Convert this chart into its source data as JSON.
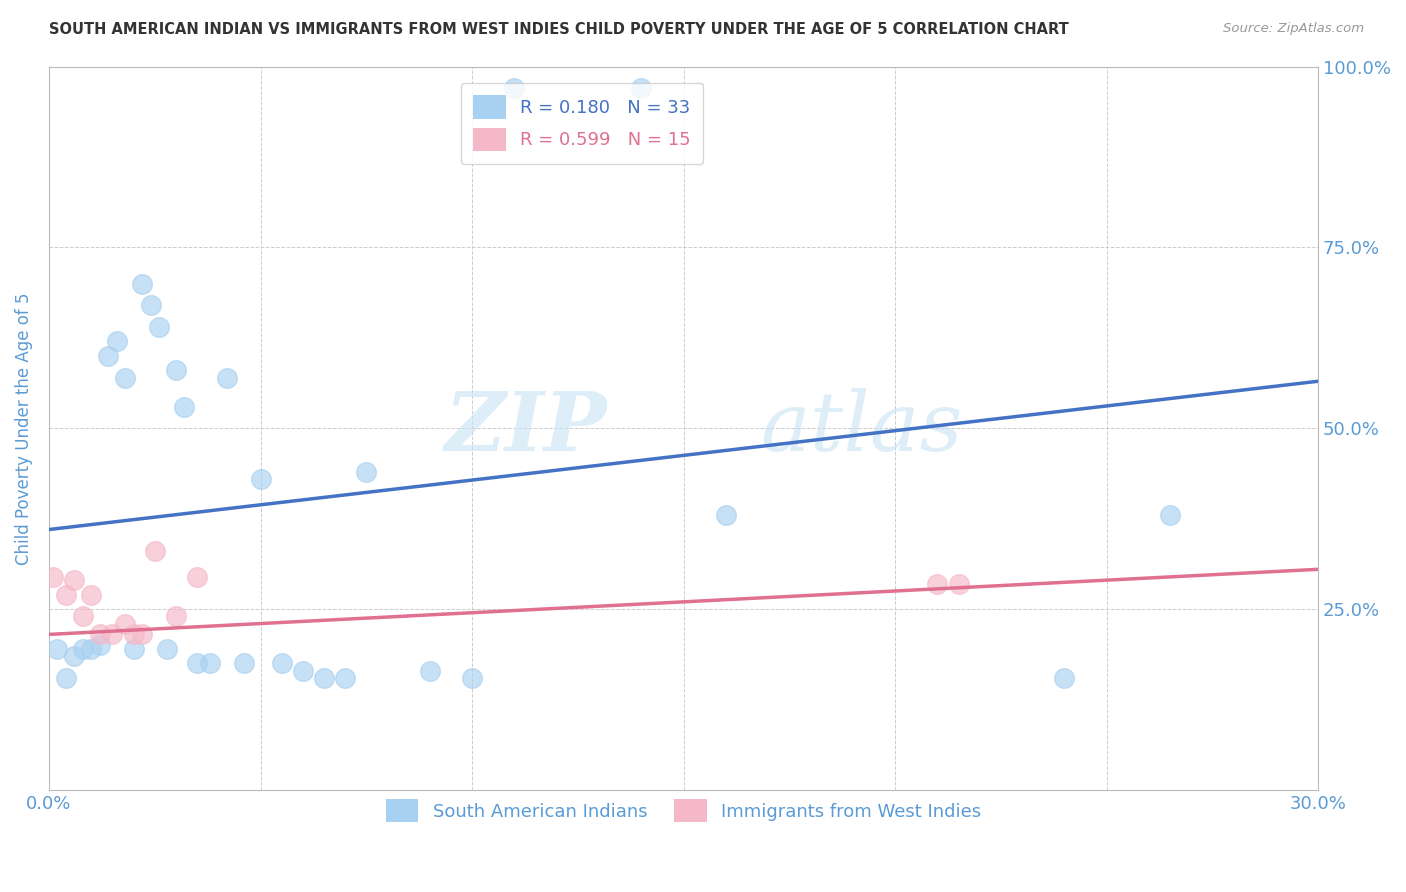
{
  "title": "SOUTH AMERICAN INDIAN VS IMMIGRANTS FROM WEST INDIES CHILD POVERTY UNDER THE AGE OF 5 CORRELATION CHART",
  "source": "Source: ZipAtlas.com",
  "ylabel": "Child Poverty Under the Age of 5",
  "x_min": 0.0,
  "x_max": 0.3,
  "y_min": 0.0,
  "y_max": 1.0,
  "x_ticks": [
    0.0,
    0.05,
    0.1,
    0.15,
    0.2,
    0.25,
    0.3
  ],
  "x_tick_labels": [
    "0.0%",
    "",
    "",
    "",
    "",
    "",
    "30.0%"
  ],
  "y_ticks": [
    0.0,
    0.25,
    0.5,
    0.75,
    1.0
  ],
  "y_tick_labels_right": [
    "",
    "25.0%",
    "50.0%",
    "75.0%",
    "100.0%"
  ],
  "blue_color": "#A8D0F0",
  "pink_color": "#F5B8C8",
  "blue_line_color": "#4472C4",
  "pink_line_color": "#E07090",
  "r_blue": 0.18,
  "n_blue": 33,
  "r_pink": 0.599,
  "n_pink": 15,
  "legend_label_blue": "South American Indians",
  "legend_label_pink": "Immigrants from West Indies",
  "watermark_zip": "ZIP",
  "watermark_atlas": "atlas",
  "blue_scatter_x": [
    0.002,
    0.004,
    0.006,
    0.008,
    0.01,
    0.012,
    0.014,
    0.016,
    0.018,
    0.02,
    0.022,
    0.024,
    0.026,
    0.028,
    0.03,
    0.032,
    0.035,
    0.038,
    0.042,
    0.046,
    0.05,
    0.055,
    0.06,
    0.065,
    0.07,
    0.075,
    0.09,
    0.1,
    0.11,
    0.14,
    0.16,
    0.24,
    0.265
  ],
  "blue_scatter_y": [
    0.195,
    0.155,
    0.185,
    0.195,
    0.195,
    0.2,
    0.6,
    0.62,
    0.57,
    0.195,
    0.7,
    0.67,
    0.64,
    0.195,
    0.58,
    0.53,
    0.175,
    0.175,
    0.57,
    0.175,
    0.43,
    0.175,
    0.165,
    0.155,
    0.155,
    0.44,
    0.165,
    0.155,
    0.97,
    0.97,
    0.38,
    0.155,
    0.38
  ],
  "pink_scatter_x": [
    0.001,
    0.004,
    0.006,
    0.008,
    0.01,
    0.012,
    0.015,
    0.018,
    0.02,
    0.022,
    0.025,
    0.03,
    0.035,
    0.21,
    0.215
  ],
  "pink_scatter_y": [
    0.295,
    0.27,
    0.29,
    0.24,
    0.27,
    0.215,
    0.215,
    0.23,
    0.215,
    0.215,
    0.33,
    0.24,
    0.295,
    0.285,
    0.285
  ],
  "blue_trend_x": [
    0.0,
    0.3
  ],
  "blue_trend_y": [
    0.36,
    0.565
  ],
  "pink_trend_x": [
    0.0,
    0.3
  ],
  "pink_trend_y": [
    0.215,
    0.305
  ],
  "background_color": "#FFFFFF",
  "grid_color": "#CCCCCC",
  "title_color": "#333333",
  "tick_label_color": "#5B9BD5"
}
